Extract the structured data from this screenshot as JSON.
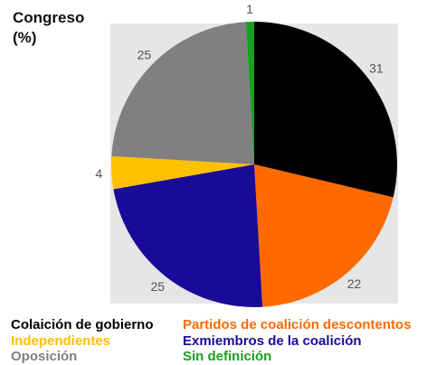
{
  "chart_data": {
    "type": "pie",
    "title_line1": "Congreso",
    "title_line2": "(%)",
    "slices": [
      {
        "label": "Colaición  de gobierno",
        "value": 31,
        "color": "#000000"
      },
      {
        "label": "Partidos de coalición  descontentos",
        "value": 22,
        "color": "#ff6a00"
      },
      {
        "label": "Exmiembros  de la coalición",
        "value": 25,
        "color": "#1a0a99"
      },
      {
        "label": "Independientes",
        "value": 4,
        "color": "#ffc000"
      },
      {
        "label": "Oposición",
        "value": 25,
        "color": "#808080"
      },
      {
        "label": "Sin definición",
        "value": 1,
        "color": "#18a020"
      }
    ],
    "legend_placement": "bottom"
  }
}
